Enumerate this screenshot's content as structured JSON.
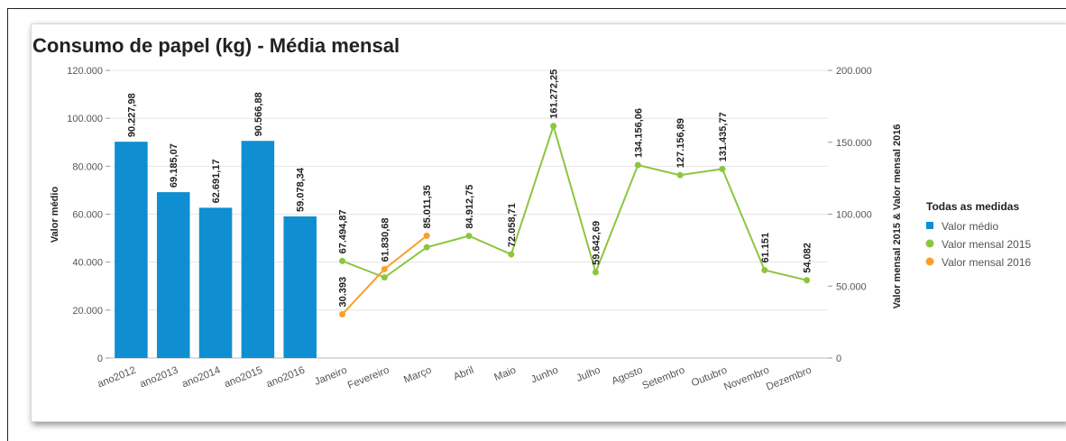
{
  "chart_data": {
    "title": "Consumo de papel (kg) - Média mensal",
    "type": "bar+line",
    "ylabel_left": "Valor médio",
    "ylabel_right": "Valor mensal 2015 & Valor mensal 2016",
    "ylim_left": [
      0,
      120000
    ],
    "ylim_right": [
      0,
      200000
    ],
    "left_ticks": [
      "0",
      "20.000",
      "40.000",
      "60.000",
      "80.000",
      "100.000",
      "120.000"
    ],
    "right_ticks": [
      "0",
      "50.000",
      "100.000",
      "150.000",
      "200.000"
    ],
    "legend_title": "Todas as medidas",
    "legend_position": "right",
    "grid": true,
    "colors": {
      "bar": "#0f8fd1",
      "line2015": "#8cc63f",
      "line2016": "#f7a12e"
    },
    "bars": {
      "name": "Valor médio",
      "categories": [
        "ano2012",
        "ano2013",
        "ano2014",
        "ano2015",
        "ano2016"
      ],
      "values": [
        90227.98,
        69185.07,
        62691.17,
        90566.88,
        59078.34
      ],
      "labels": [
        "90.227,98",
        "69.185,07",
        "62.691,17",
        "90.566,88",
        "59.078,34"
      ]
    },
    "months": [
      "Janeiro",
      "Fevereiro",
      "Março",
      "Abril",
      "Maio",
      "Junho",
      "Julho",
      "Agosto",
      "Setembro",
      "Outubro",
      "Novembro",
      "Dezembro"
    ],
    "series": [
      {
        "name": "Valor mensal 2015",
        "values": [
          67494.87,
          56000,
          77000,
          84912.75,
          72058.71,
          161272.25,
          59642.69,
          134156.06,
          127156.89,
          131435.77,
          61151,
          54082
        ],
        "labels": [
          "67.494,87",
          "",
          "",
          "84.912,75",
          "72.058,71",
          "161.272,25",
          "59.642,69",
          "134.156,06",
          "127.156,89",
          "131.435,77",
          "61.151",
          "54.082"
        ]
      },
      {
        "name": "Valor mensal 2016",
        "values": [
          30393,
          61830.68,
          85011.35
        ],
        "labels": [
          "30.393",
          "61.830,68",
          "85.011,35"
        ]
      }
    ]
  }
}
